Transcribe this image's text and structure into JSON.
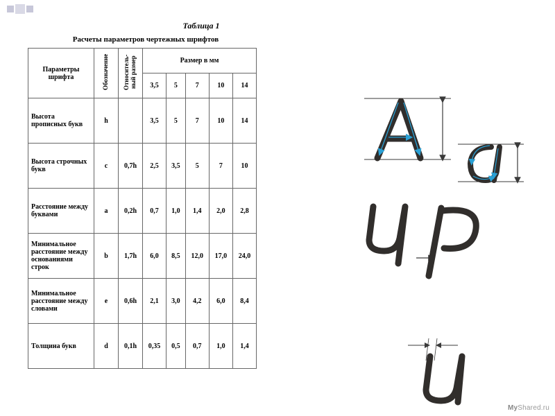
{
  "decor": {
    "bullet_color": "#c7c7d9"
  },
  "table_label": "Таблица 1",
  "subtitle": "Расчеты параметров чертежных шрифтов",
  "headers": {
    "param": "Параметры шрифта",
    "symbol": "Обозначение",
    "relative": "Относитель-\nный размер",
    "size_mm": "Размер в мм",
    "sizes": [
      "3,5",
      "5",
      "7",
      "10",
      "14"
    ]
  },
  "rows": [
    {
      "param": "Высота прописных букв",
      "sym": "h",
      "rel": "",
      "vals": [
        "3,5",
        "5",
        "7",
        "10",
        "14"
      ]
    },
    {
      "param": "Высота строчных букв",
      "sym": "c",
      "rel": "0,7h",
      "vals": [
        "2,5",
        "3,5",
        "5",
        "7",
        "10"
      ]
    },
    {
      "param": "Расстояние между буквами",
      "sym": "a",
      "rel": "0,2h",
      "vals": [
        "0,7",
        "1,0",
        "1,4",
        "2,0",
        "2,8"
      ]
    },
    {
      "param": "Минимальное расстояние между основаниями строк",
      "sym": "b",
      "rel": "1,7h",
      "vals": [
        "6,0",
        "8,5",
        "12,0",
        "17,0",
        "24,0"
      ]
    },
    {
      "param": "Минимальное расстояние между словами",
      "sym": "e",
      "rel": "0,6h",
      "vals": [
        "2,1",
        "3,0",
        "4,2",
        "6,0",
        "8,4"
      ]
    },
    {
      "param": "Толщина букв",
      "sym": "d",
      "rel": "0,1h",
      "vals": [
        "0,35",
        "0,5",
        "0,7",
        "1,0",
        "1,4"
      ]
    }
  ],
  "diagrams": {
    "stroke": "#312e2c",
    "arrow": "#2aa0d4",
    "dim": "#3a3a3a"
  },
  "watermark": {
    "brand": "My",
    "rest": "Shared.ru"
  }
}
